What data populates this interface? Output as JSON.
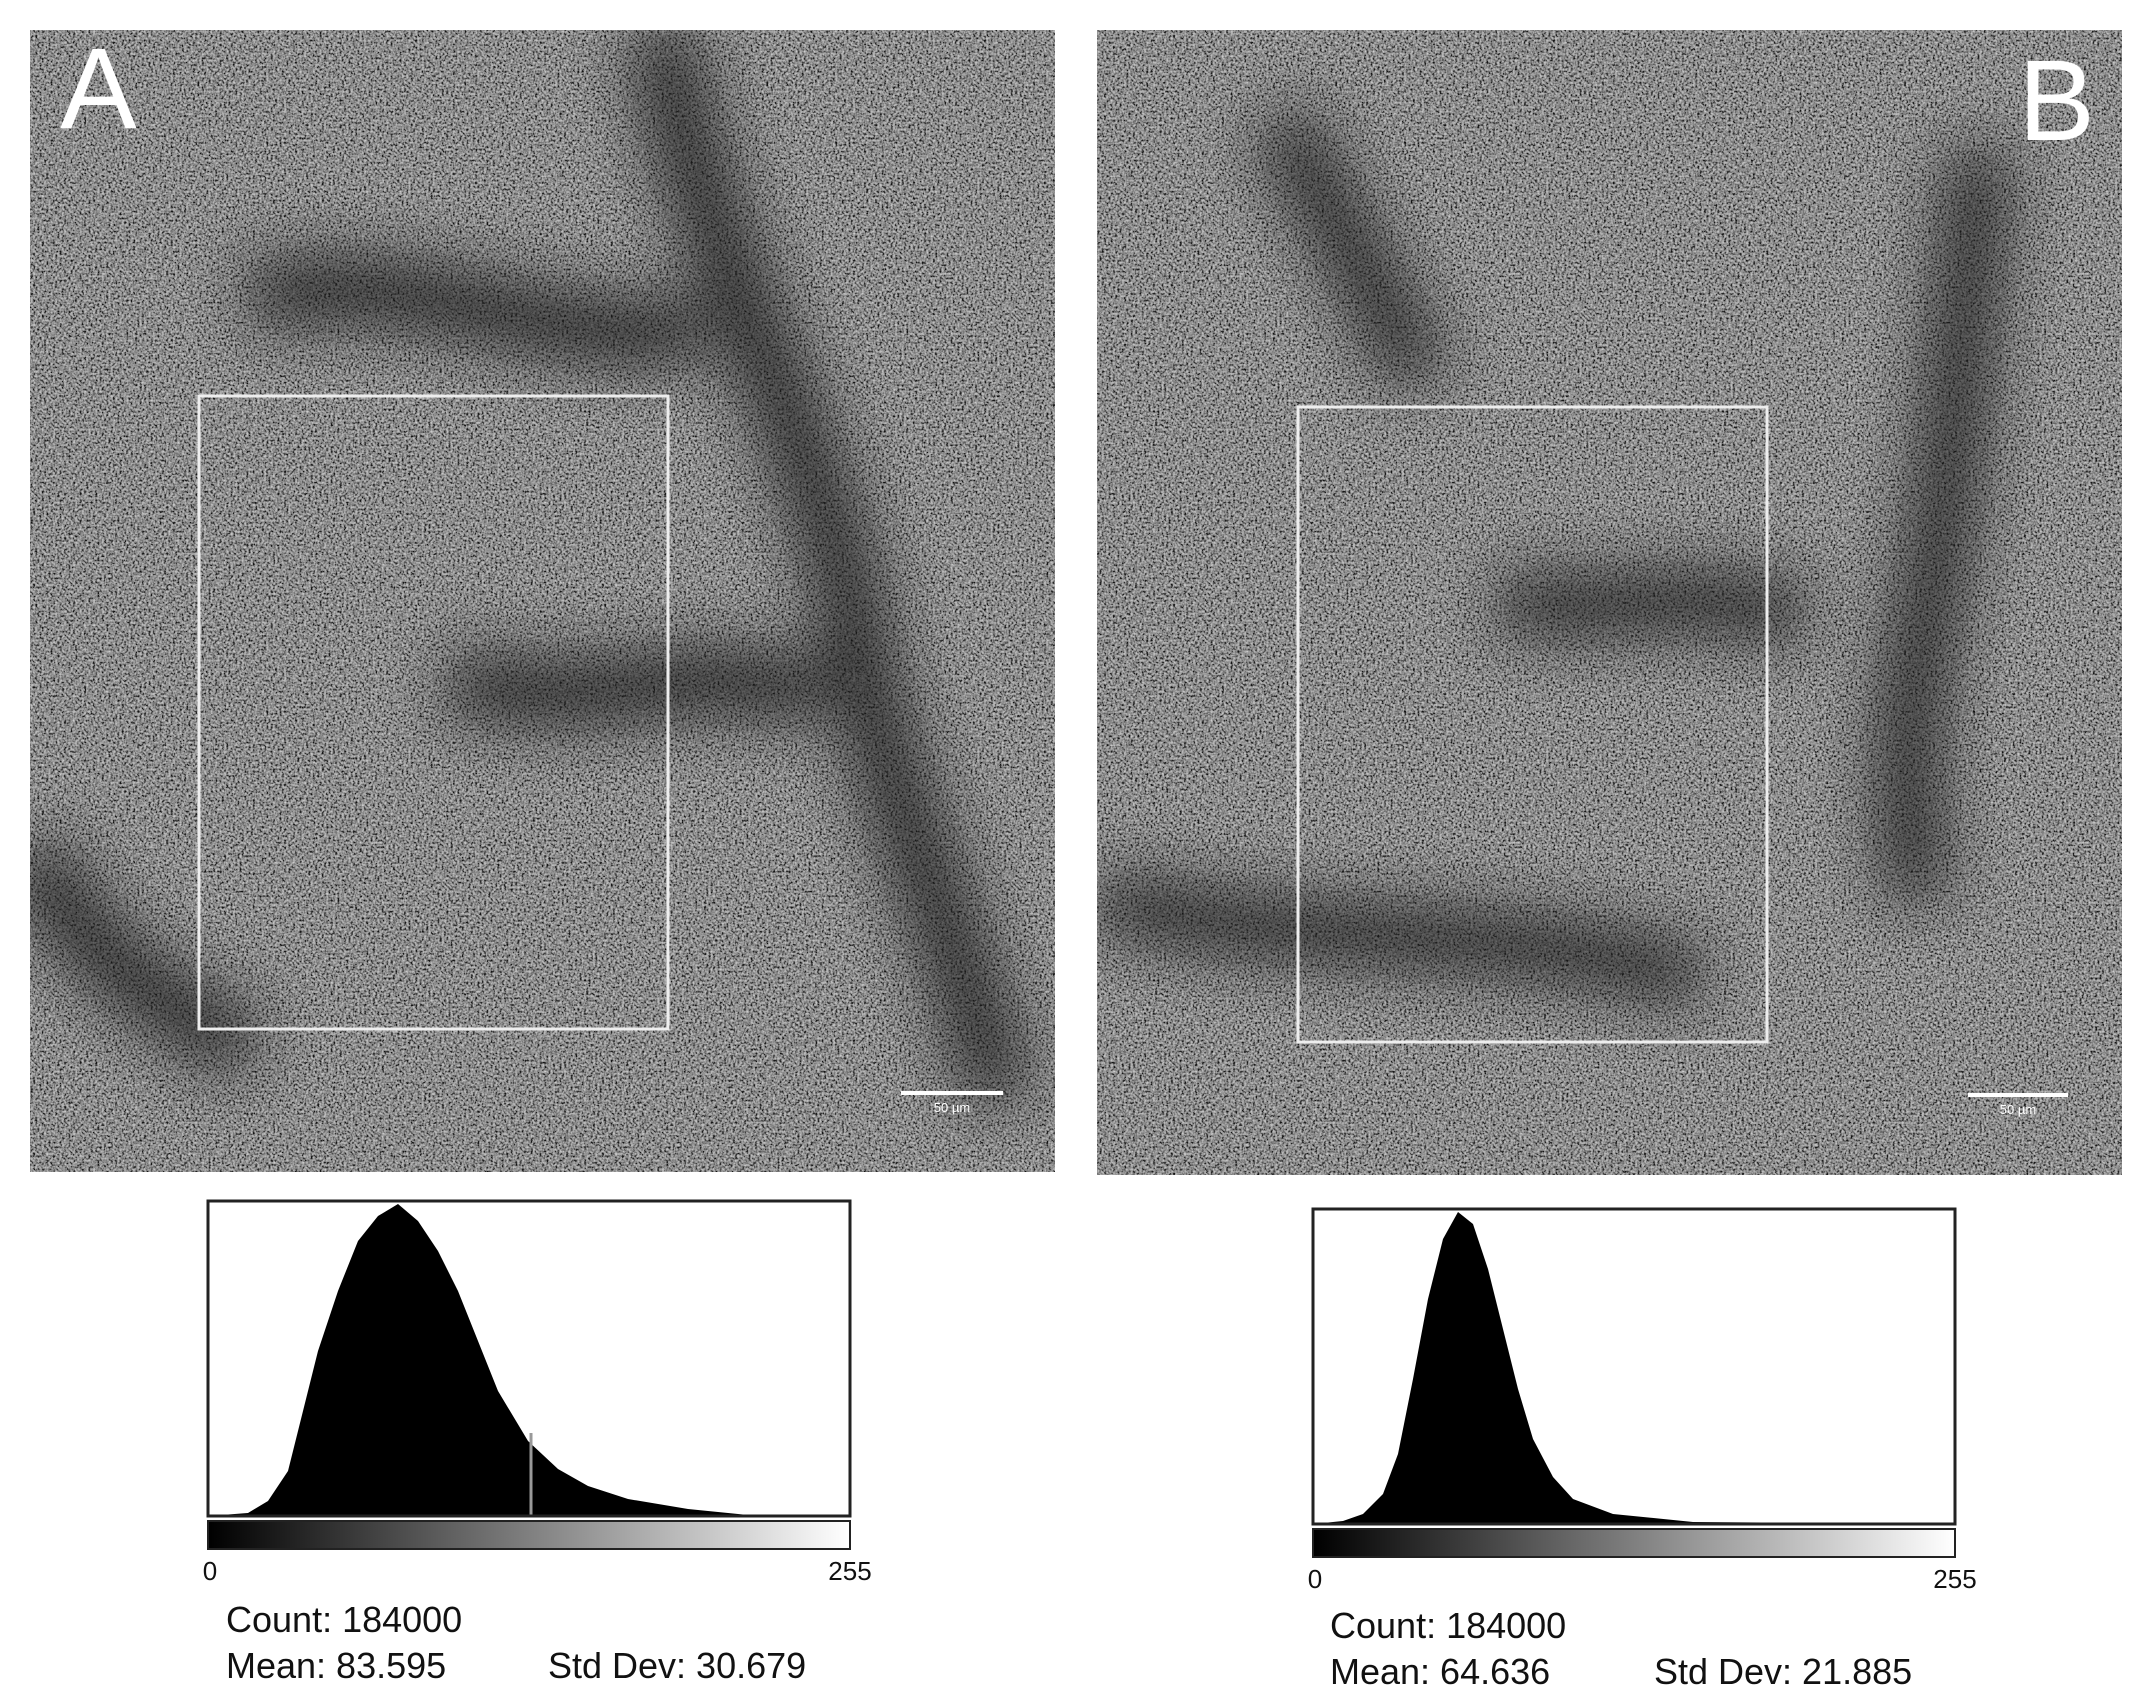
{
  "panels": [
    {
      "label": "A",
      "scale_bar": "50 µm",
      "axis_min": "0",
      "axis_max": "255",
      "count": "Count: 184000",
      "mean": "Mean: 83.595",
      "std_dev": "Std Dev: 30.679"
    },
    {
      "label": "B",
      "scale_bar": "50 µm",
      "axis_min": "0",
      "axis_max": "255",
      "count": "Count: 184000",
      "mean": "Mean: 64.636",
      "std_dev": "Std Dev: 21.885"
    }
  ]
}
